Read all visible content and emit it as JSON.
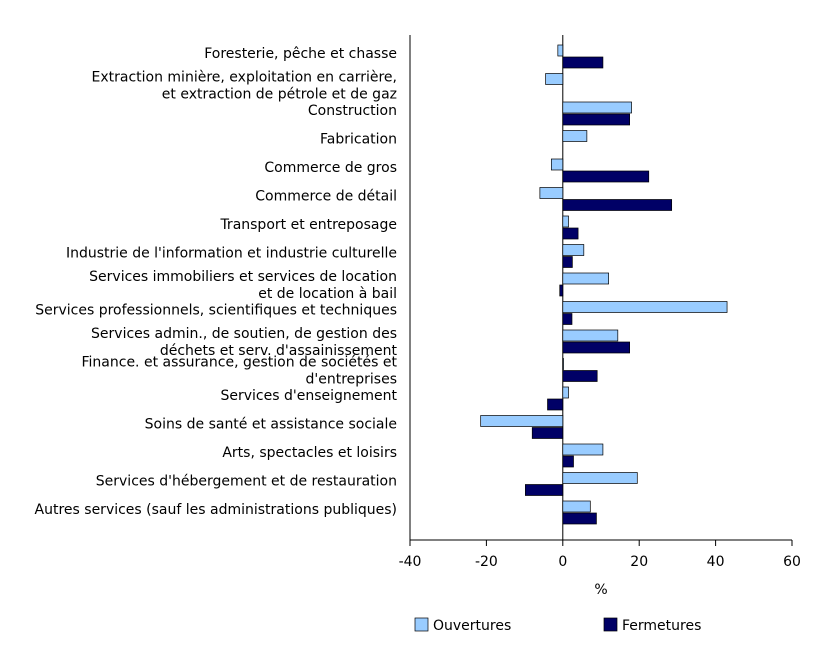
{
  "chart_data": {
    "type": "bar",
    "orientation": "horizontal",
    "categories": [
      [
        "Foresterie, pêche et chasse"
      ],
      [
        "Extraction minière, exploitation en carrière,",
        "et extraction de pétrole et de gaz"
      ],
      [
        "Construction"
      ],
      [
        "Fabrication"
      ],
      [
        "Commerce de gros"
      ],
      [
        "Commerce de détail"
      ],
      [
        "Transport et entreposage"
      ],
      [
        "Industrie de l'information et industrie culturelle"
      ],
      [
        "Services immobiliers et services de location",
        "et de location à bail"
      ],
      [
        "Services professionnels, scientifiques et techniques"
      ],
      [
        "Services admin., de soutien, de gestion des",
        "déchets et serv. d'assainissement"
      ],
      [
        "Finance. et assurance, gestion de sociétés et",
        "d'entreprises"
      ],
      [
        "Services d'enseignement"
      ],
      [
        "Soins de santé et assistance sociale"
      ],
      [
        "Arts, spectacles et loisirs"
      ],
      [
        "Services d'hébergement et de restauration"
      ],
      [
        "Autres services (sauf les administrations publiques)"
      ]
    ],
    "series": [
      {
        "name": "Ouvertures",
        "color": "#99ccff",
        "values": [
          -1.3,
          -4.5,
          18,
          6.3,
          -3,
          -6,
          1.5,
          5.5,
          12,
          43,
          14.4,
          0.2,
          1.5,
          -21.5,
          10.5,
          19.5,
          7.2
        ]
      },
      {
        "name": "Fermetures",
        "color": "#000066",
        "values": [
          10.5,
          0,
          17.5,
          0,
          22.5,
          28.5,
          4,
          2.5,
          -0.8,
          2.4,
          17.5,
          9,
          -4,
          -8,
          2.8,
          -9.8,
          8.8
        ]
      }
    ],
    "xlim": [
      -40,
      60
    ],
    "xticks": [
      -40,
      -20,
      0,
      20,
      40,
      60
    ],
    "xlabel": "%"
  }
}
